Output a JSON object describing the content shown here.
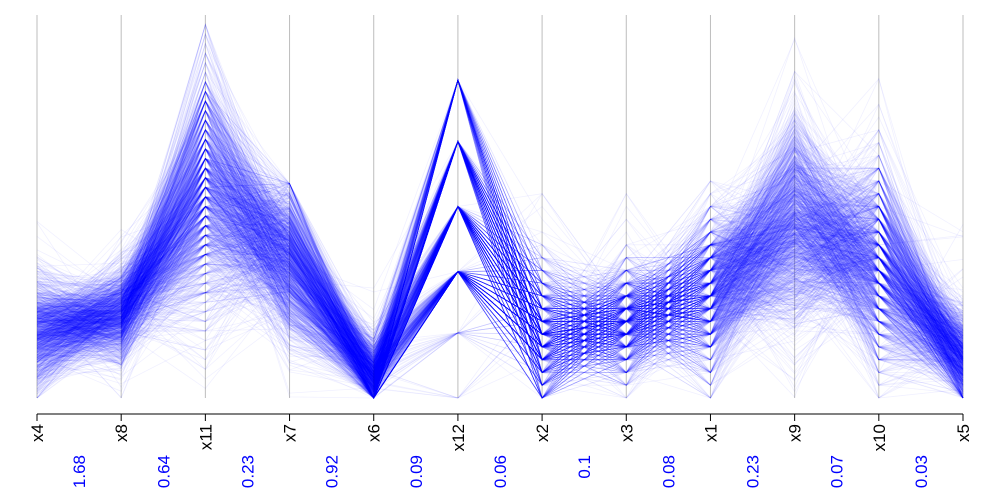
{
  "chart_data": {
    "type": "parallel-coordinates",
    "axes": [
      "x4",
      "x8",
      "x11",
      "x7",
      "x6",
      "x12",
      "x2",
      "x3",
      "x1",
      "x9",
      "x10",
      "x5"
    ],
    "gap_values": [
      "1.68",
      "0.64",
      "0.23",
      "0.92",
      "0.09",
      "0.06",
      "0.1",
      "0.08",
      "0.23",
      "0.07",
      "0.03"
    ],
    "line_color": "#0000ff",
    "line_opacity": 0.06,
    "range": [
      0,
      1
    ],
    "axis_profiles": {
      "x4": {
        "mean": 0.17,
        "sd": 0.07,
        "min": 0.0,
        "max": 0.48
      },
      "x8": {
        "mean": 0.22,
        "sd": 0.06,
        "min": 0.0,
        "max": 0.44
      },
      "x11": {
        "mean": 0.55,
        "sd": 0.16,
        "min": 0.0,
        "max": 0.97,
        "discrete_steps": 40
      },
      "x7": {
        "mean": 0.36,
        "sd": 0.1,
        "min": 0.0,
        "max": 0.56
      },
      "x6": {
        "mean": 0.05,
        "sd": 0.05,
        "min": 0.0,
        "max": 0.3
      },
      "x12": {
        "levels": [
          0.0,
          0.17,
          0.33,
          0.5,
          0.67,
          0.83
        ],
        "weights": [
          0.005,
          0.02,
          0.3,
          0.3,
          0.25,
          0.125
        ],
        "max": 1.0
      },
      "x2": {
        "mean": 0.16,
        "sd": 0.09,
        "min": 0.0,
        "max": 0.55,
        "discrete_steps": 30
      },
      "x3": {
        "mean": 0.2,
        "sd": 0.07,
        "min": 0.0,
        "max": 0.6,
        "discrete_steps": 30
      },
      "x1": {
        "mean": 0.28,
        "sd": 0.1,
        "min": 0.0,
        "max": 0.57,
        "discrete_steps": 30
      },
      "x9": {
        "mean": 0.46,
        "sd": 0.14,
        "min": 0.0,
        "max": 0.98
      },
      "x10": {
        "mean": 0.35,
        "sd": 0.13,
        "min": 0.0,
        "max": 0.9,
        "discrete_steps": 30
      },
      "x5": {
        "mean": 0.1,
        "sd": 0.06,
        "min": 0.0,
        "max": 0.5
      }
    }
  }
}
